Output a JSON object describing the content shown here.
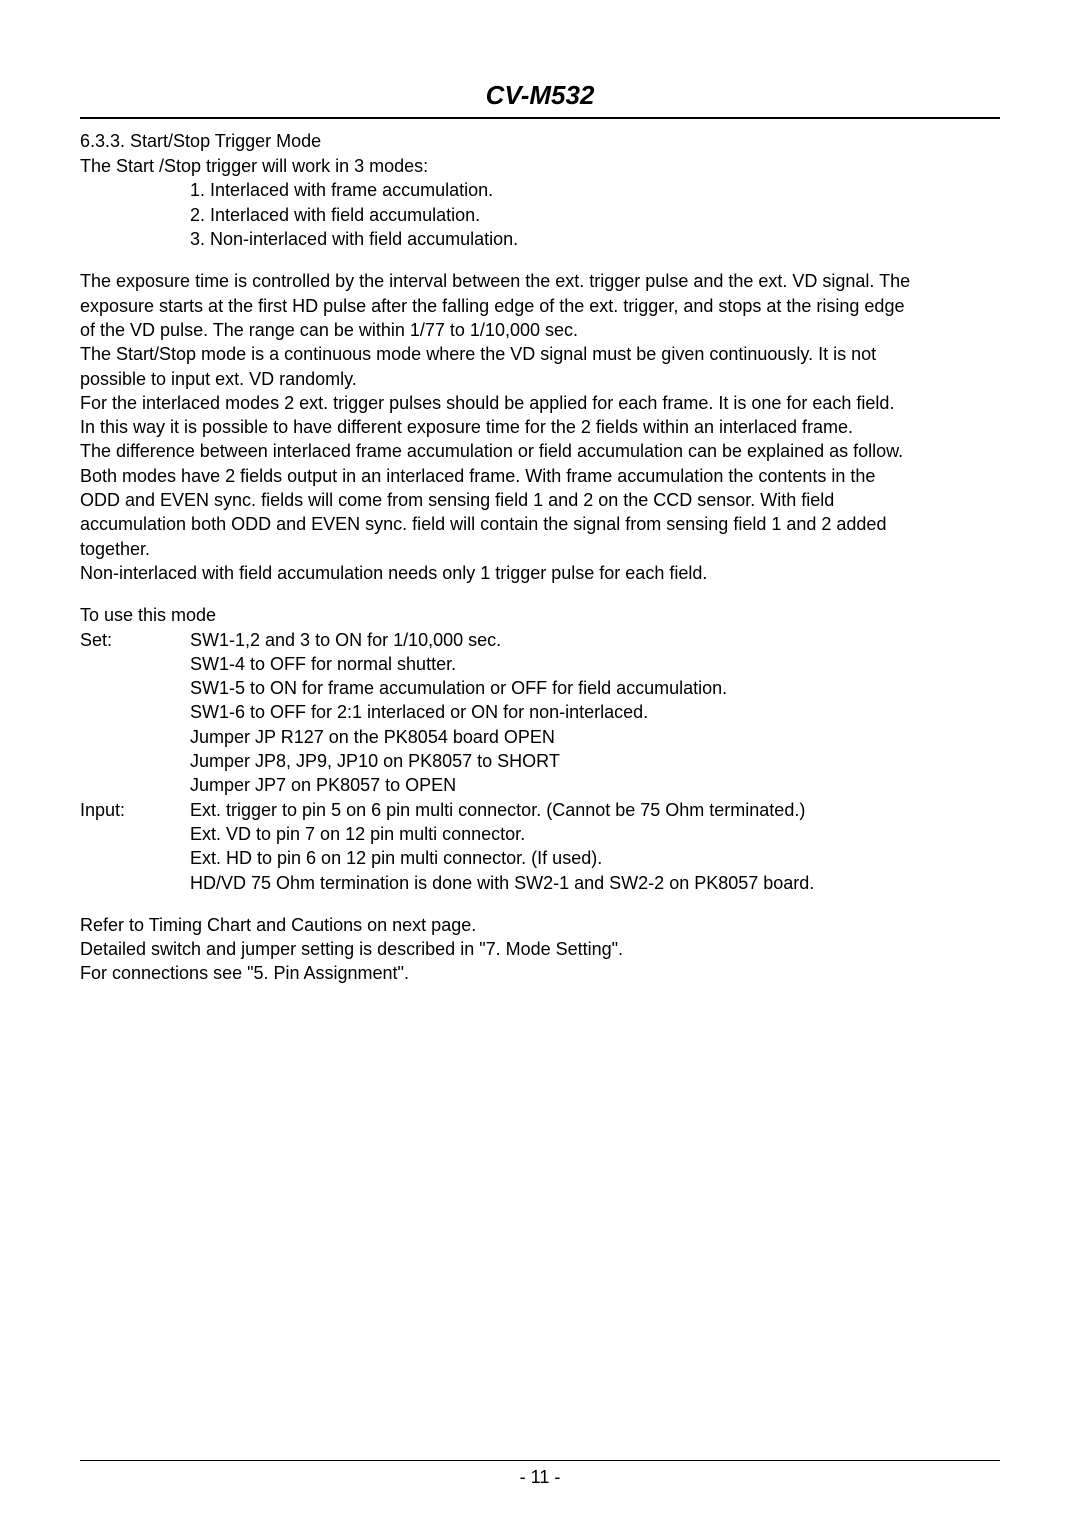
{
  "doc_title": "CV-M532",
  "section_number": "6.3.3. Start/Stop Trigger Mode",
  "intro_line": "The Start /Stop trigger will work in 3 modes:",
  "modes": {
    "m1": "1.   Interlaced with frame accumulation.",
    "m2": "2.   Interlaced with field accumulation.",
    "m3": "3.   Non-interlaced with field accumulation."
  },
  "para1_l1": "The exposure time is controlled by the interval between the ext. trigger pulse and the ext. VD signal. The",
  "para1_l2": "exposure starts at the first HD pulse after the falling edge of the ext. trigger, and stops at the rising edge",
  "para1_l3": "of the VD pulse. The range can be within 1/77 to 1/10,000 sec.",
  "para2_l1": "The Start/Stop mode is a continuous mode where the VD signal must be given continuously. It is not",
  "para2_l2": "possible to input ext. VD randomly.",
  "para3_l1": "For the interlaced modes 2 ext. trigger pulses should be applied for each frame. It is one for each field.",
  "para3_l2": "In this way it is possible to have different exposure time for the 2 fields within an interlaced frame.",
  "para4_l1": "The difference between interlaced frame accumulation or field accumulation can be explained as follow.",
  "para4_l2": "Both modes have 2 fields output in an interlaced frame. With frame accumulation the contents in the",
  "para4_l3": "ODD and EVEN sync. fields will come from sensing field 1 and 2 on the CCD sensor. With field",
  "para4_l4": "accumulation both ODD and EVEN sync. field will contain the signal from sensing field 1 and 2 added",
  "para4_l5": "together.",
  "para5": "Non-interlaced with field accumulation needs only 1 trigger pulse for each field.",
  "use_heading": "To use this mode",
  "set_label": "Set:",
  "set_l1": "SW1-1,2 and 3 to ON for 1/10,000 sec.",
  "set_l2": "SW1-4 to OFF for normal shutter.",
  "set_l3": "SW1-5 to ON for frame accumulation or OFF for field accumulation.",
  "set_l4": "SW1-6 to OFF for 2:1 interlaced or ON for non-interlaced.",
  "set_l5": "Jumper JP R127 on the PK8054 board OPEN",
  "set_l6": "Jumper JP8, JP9, JP10 on PK8057 to SHORT",
  "set_l7": "Jumper JP7 on PK8057 to OPEN",
  "input_label": "Input:",
  "input_l1": "Ext. trigger to pin 5 on 6 pin multi connector. (Cannot be 75 Ohm terminated.)",
  "input_l2": "Ext. VD to pin 7 on 12 pin multi connector.",
  "input_l3": "Ext. HD to pin 6 on 12 pin multi connector. (If used).",
  "input_l4": "HD/VD 75 Ohm termination is done with SW2-1 and SW2-2 on PK8057 board.",
  "ref_l1": "Refer to Timing Chart and Cautions on next page.",
  "ref_l2": "Detailed switch and jumper setting is described in \"7. Mode Setting\".",
  "ref_l3": "For connections see \"5. Pin Assignment\".",
  "page_number": "- 11 -"
}
